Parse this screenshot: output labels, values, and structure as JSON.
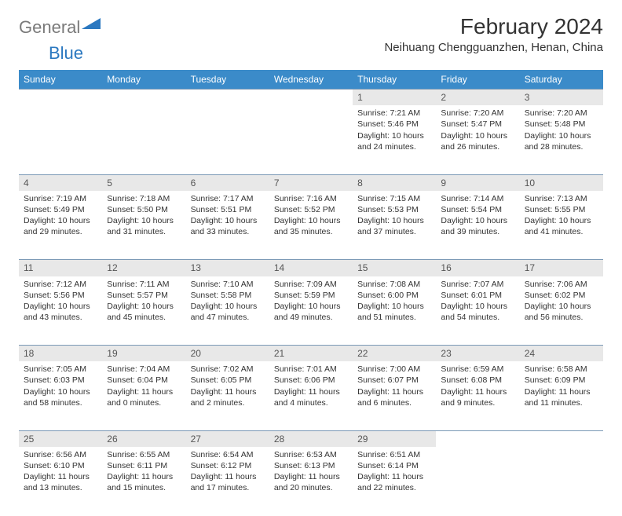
{
  "logo": {
    "general": "General",
    "blue": "Blue"
  },
  "title": "February 2024",
  "location": "Neihuang Chengguanzhen, Henan, China",
  "colors": {
    "header_bg": "#3b8bc9",
    "daynum_bg": "#e8e8e8",
    "border": "#7a98b5",
    "logo_gray": "#7a7a7a",
    "logo_blue": "#2b78c0"
  },
  "day_headers": [
    "Sunday",
    "Monday",
    "Tuesday",
    "Wednesday",
    "Thursday",
    "Friday",
    "Saturday"
  ],
  "weeks": [
    [
      {
        "n": "",
        "lines": []
      },
      {
        "n": "",
        "lines": []
      },
      {
        "n": "",
        "lines": []
      },
      {
        "n": "",
        "lines": []
      },
      {
        "n": "1",
        "lines": [
          "Sunrise: 7:21 AM",
          "Sunset: 5:46 PM",
          "Daylight: 10 hours and 24 minutes."
        ]
      },
      {
        "n": "2",
        "lines": [
          "Sunrise: 7:20 AM",
          "Sunset: 5:47 PM",
          "Daylight: 10 hours and 26 minutes."
        ]
      },
      {
        "n": "3",
        "lines": [
          "Sunrise: 7:20 AM",
          "Sunset: 5:48 PM",
          "Daylight: 10 hours and 28 minutes."
        ]
      }
    ],
    [
      {
        "n": "4",
        "lines": [
          "Sunrise: 7:19 AM",
          "Sunset: 5:49 PM",
          "Daylight: 10 hours and 29 minutes."
        ]
      },
      {
        "n": "5",
        "lines": [
          "Sunrise: 7:18 AM",
          "Sunset: 5:50 PM",
          "Daylight: 10 hours and 31 minutes."
        ]
      },
      {
        "n": "6",
        "lines": [
          "Sunrise: 7:17 AM",
          "Sunset: 5:51 PM",
          "Daylight: 10 hours and 33 minutes."
        ]
      },
      {
        "n": "7",
        "lines": [
          "Sunrise: 7:16 AM",
          "Sunset: 5:52 PM",
          "Daylight: 10 hours and 35 minutes."
        ]
      },
      {
        "n": "8",
        "lines": [
          "Sunrise: 7:15 AM",
          "Sunset: 5:53 PM",
          "Daylight: 10 hours and 37 minutes."
        ]
      },
      {
        "n": "9",
        "lines": [
          "Sunrise: 7:14 AM",
          "Sunset: 5:54 PM",
          "Daylight: 10 hours and 39 minutes."
        ]
      },
      {
        "n": "10",
        "lines": [
          "Sunrise: 7:13 AM",
          "Sunset: 5:55 PM",
          "Daylight: 10 hours and 41 minutes."
        ]
      }
    ],
    [
      {
        "n": "11",
        "lines": [
          "Sunrise: 7:12 AM",
          "Sunset: 5:56 PM",
          "Daylight: 10 hours and 43 minutes."
        ]
      },
      {
        "n": "12",
        "lines": [
          "Sunrise: 7:11 AM",
          "Sunset: 5:57 PM",
          "Daylight: 10 hours and 45 minutes."
        ]
      },
      {
        "n": "13",
        "lines": [
          "Sunrise: 7:10 AM",
          "Sunset: 5:58 PM",
          "Daylight: 10 hours and 47 minutes."
        ]
      },
      {
        "n": "14",
        "lines": [
          "Sunrise: 7:09 AM",
          "Sunset: 5:59 PM",
          "Daylight: 10 hours and 49 minutes."
        ]
      },
      {
        "n": "15",
        "lines": [
          "Sunrise: 7:08 AM",
          "Sunset: 6:00 PM",
          "Daylight: 10 hours and 51 minutes."
        ]
      },
      {
        "n": "16",
        "lines": [
          "Sunrise: 7:07 AM",
          "Sunset: 6:01 PM",
          "Daylight: 10 hours and 54 minutes."
        ]
      },
      {
        "n": "17",
        "lines": [
          "Sunrise: 7:06 AM",
          "Sunset: 6:02 PM",
          "Daylight: 10 hours and 56 minutes."
        ]
      }
    ],
    [
      {
        "n": "18",
        "lines": [
          "Sunrise: 7:05 AM",
          "Sunset: 6:03 PM",
          "Daylight: 10 hours and 58 minutes."
        ]
      },
      {
        "n": "19",
        "lines": [
          "Sunrise: 7:04 AM",
          "Sunset: 6:04 PM",
          "Daylight: 11 hours and 0 minutes."
        ]
      },
      {
        "n": "20",
        "lines": [
          "Sunrise: 7:02 AM",
          "Sunset: 6:05 PM",
          "Daylight: 11 hours and 2 minutes."
        ]
      },
      {
        "n": "21",
        "lines": [
          "Sunrise: 7:01 AM",
          "Sunset: 6:06 PM",
          "Daylight: 11 hours and 4 minutes."
        ]
      },
      {
        "n": "22",
        "lines": [
          "Sunrise: 7:00 AM",
          "Sunset: 6:07 PM",
          "Daylight: 11 hours and 6 minutes."
        ]
      },
      {
        "n": "23",
        "lines": [
          "Sunrise: 6:59 AM",
          "Sunset: 6:08 PM",
          "Daylight: 11 hours and 9 minutes."
        ]
      },
      {
        "n": "24",
        "lines": [
          "Sunrise: 6:58 AM",
          "Sunset: 6:09 PM",
          "Daylight: 11 hours and 11 minutes."
        ]
      }
    ],
    [
      {
        "n": "25",
        "lines": [
          "Sunrise: 6:56 AM",
          "Sunset: 6:10 PM",
          "Daylight: 11 hours and 13 minutes."
        ]
      },
      {
        "n": "26",
        "lines": [
          "Sunrise: 6:55 AM",
          "Sunset: 6:11 PM",
          "Daylight: 11 hours and 15 minutes."
        ]
      },
      {
        "n": "27",
        "lines": [
          "Sunrise: 6:54 AM",
          "Sunset: 6:12 PM",
          "Daylight: 11 hours and 17 minutes."
        ]
      },
      {
        "n": "28",
        "lines": [
          "Sunrise: 6:53 AM",
          "Sunset: 6:13 PM",
          "Daylight: 11 hours and 20 minutes."
        ]
      },
      {
        "n": "29",
        "lines": [
          "Sunrise: 6:51 AM",
          "Sunset: 6:14 PM",
          "Daylight: 11 hours and 22 minutes."
        ]
      },
      {
        "n": "",
        "lines": []
      },
      {
        "n": "",
        "lines": []
      }
    ]
  ]
}
